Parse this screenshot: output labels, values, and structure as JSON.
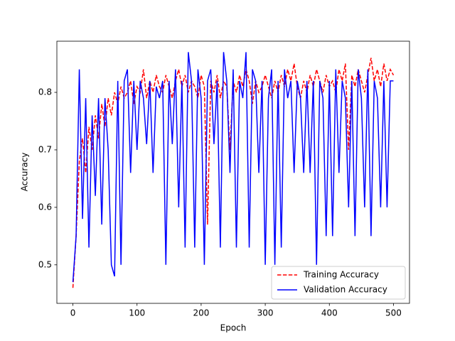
{
  "chart_data": {
    "type": "line",
    "xlabel": "Epoch",
    "ylabel": "Accuracy",
    "xlim": [
      -25,
      525
    ],
    "ylim": [
      0.433,
      0.889
    ],
    "xticks": [
      0,
      100,
      200,
      300,
      400,
      500
    ],
    "yticks": [
      0.5,
      0.6,
      0.7,
      0.8
    ],
    "legend": "lower right",
    "x": [
      0,
      5,
      10,
      15,
      20,
      25,
      30,
      35,
      40,
      45,
      50,
      55,
      60,
      65,
      70,
      75,
      80,
      85,
      90,
      95,
      100,
      105,
      110,
      115,
      120,
      125,
      130,
      135,
      140,
      145,
      150,
      155,
      160,
      165,
      170,
      175,
      180,
      185,
      190,
      195,
      200,
      205,
      210,
      215,
      220,
      225,
      230,
      235,
      240,
      245,
      250,
      255,
      260,
      265,
      270,
      275,
      280,
      285,
      290,
      295,
      300,
      305,
      310,
      315,
      320,
      325,
      330,
      335,
      340,
      345,
      350,
      355,
      360,
      365,
      370,
      375,
      380,
      385,
      390,
      395,
      400,
      405,
      410,
      415,
      420,
      425,
      430,
      435,
      440,
      445,
      450,
      455,
      460,
      465,
      470,
      475,
      480,
      485,
      490,
      495,
      500
    ],
    "series": [
      {
        "name": "Training Accuracy",
        "color": "#ff0000",
        "dash": true,
        "values": [
          0.46,
          0.55,
          0.68,
          0.72,
          0.66,
          0.74,
          0.7,
          0.76,
          0.72,
          0.78,
          0.74,
          0.79,
          0.76,
          0.8,
          0.78,
          0.81,
          0.79,
          0.8,
          0.82,
          0.78,
          0.81,
          0.8,
          0.84,
          0.79,
          0.82,
          0.8,
          0.83,
          0.81,
          0.8,
          0.83,
          0.81,
          0.79,
          0.82,
          0.84,
          0.81,
          0.83,
          0.8,
          0.82,
          0.81,
          0.79,
          0.83,
          0.81,
          0.57,
          0.82,
          0.8,
          0.83,
          0.79,
          0.82,
          0.81,
          0.7,
          0.82,
          0.8,
          0.83,
          0.81,
          0.84,
          0.82,
          0.78,
          0.82,
          0.8,
          0.81,
          0.83,
          0.81,
          0.79,
          0.82,
          0.8,
          0.83,
          0.81,
          0.84,
          0.82,
          0.85,
          0.81,
          0.79,
          0.82,
          0.8,
          0.83,
          0.81,
          0.84,
          0.82,
          0.8,
          0.83,
          0.81,
          0.82,
          0.8,
          0.84,
          0.82,
          0.85,
          0.7,
          0.83,
          0.81,
          0.84,
          0.82,
          0.8,
          0.83,
          0.86,
          0.82,
          0.84,
          0.81,
          0.85,
          0.82,
          0.84,
          0.83
        ]
      },
      {
        "name": "Validation Accuracy",
        "color": "#0000ff",
        "dash": false,
        "values": [
          0.47,
          0.55,
          0.84,
          0.58,
          0.79,
          0.53,
          0.76,
          0.62,
          0.79,
          0.57,
          0.79,
          0.7,
          0.5,
          0.48,
          0.82,
          0.5,
          0.82,
          0.84,
          0.66,
          0.82,
          0.7,
          0.82,
          0.79,
          0.71,
          0.82,
          0.66,
          0.81,
          0.79,
          0.82,
          0.5,
          0.82,
          0.71,
          0.84,
          0.6,
          0.82,
          0.53,
          0.87,
          0.82,
          0.53,
          0.84,
          0.79,
          0.5,
          0.82,
          0.84,
          0.71,
          0.82,
          0.53,
          0.87,
          0.82,
          0.66,
          0.84,
          0.53,
          0.82,
          0.79,
          0.87,
          0.53,
          0.84,
          0.82,
          0.66,
          0.82,
          0.5,
          0.79,
          0.84,
          0.5,
          0.82,
          0.53,
          0.84,
          0.79,
          0.82,
          0.66,
          0.82,
          0.79,
          0.66,
          0.82,
          0.66,
          0.82,
          0.5,
          0.82,
          0.79,
          0.55,
          0.82,
          0.55,
          0.84,
          0.66,
          0.82,
          0.79,
          0.6,
          0.82,
          0.55,
          0.84,
          0.79,
          0.6,
          0.84,
          0.55,
          0.82,
          0.79,
          0.6,
          0.82,
          0.6,
          0.82,
          0.82
        ]
      }
    ]
  }
}
